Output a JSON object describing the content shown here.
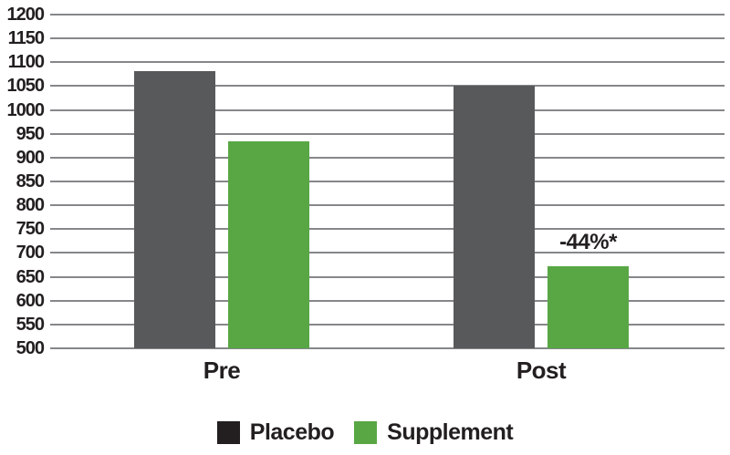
{
  "chart_data": {
    "type": "bar",
    "title": "",
    "xlabel": "",
    "ylabel": "",
    "categories": [
      "Pre",
      "Post"
    ],
    "series": [
      {
        "name": "Placebo",
        "color": "#58595b",
        "legend_color": "#231f20",
        "values": [
          1082,
          1050
        ]
      },
      {
        "name": "Supplement",
        "color": "#58a744",
        "legend_color": "#58a744",
        "values": [
          935,
          672
        ]
      }
    ],
    "annotations": [
      {
        "text": "-44%*",
        "category": "Post",
        "series": "Supplement"
      }
    ],
    "ylim": [
      500,
      1200
    ],
    "ytick_step": 50,
    "yticks": [
      500,
      550,
      600,
      650,
      700,
      750,
      800,
      850,
      900,
      950,
      1000,
      1050,
      1100,
      1150,
      1200
    ],
    "grid": true,
    "legend_position": "bottom"
  },
  "colors": {
    "text": "#231f20",
    "gridline": "#85878a",
    "background": "#ffffff"
  }
}
